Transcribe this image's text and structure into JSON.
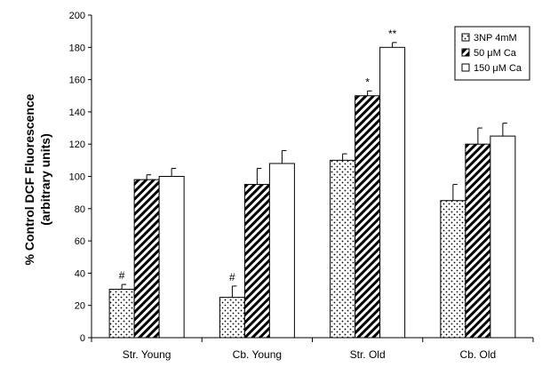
{
  "chart_data": {
    "type": "bar",
    "title": "",
    "xlabel": "",
    "ylabel": "% Control DCF Fluorescence",
    "ylabel2": "(arbitrary units)",
    "ylim": [
      0,
      200
    ],
    "yticks": [
      0,
      20,
      40,
      60,
      80,
      100,
      120,
      140,
      160,
      180,
      200
    ],
    "grid": false,
    "legend_position": "top-right",
    "categories": [
      "Str. Young",
      "Cb. Young",
      "Str. Old",
      "Cb. Old"
    ],
    "series": [
      {
        "name": "3NP 4mM",
        "pattern": "dots",
        "values": [
          30,
          25,
          110,
          85
        ],
        "errors": [
          3,
          7,
          4,
          10
        ],
        "annotations": [
          "#",
          "#",
          "",
          ""
        ]
      },
      {
        "name": "50 μM Ca",
        "pattern": "diagonal-hatch",
        "values": [
          98,
          95,
          150,
          120
        ],
        "errors": [
          3,
          10,
          3,
          10
        ],
        "annotations": [
          "",
          "",
          "*",
          ""
        ]
      },
      {
        "name": "150 μM Ca",
        "pattern": "white",
        "values": [
          100,
          108,
          180,
          125
        ],
        "errors": [
          5,
          8,
          3,
          8
        ],
        "annotations": [
          "",
          "",
          "**",
          ""
        ]
      }
    ]
  }
}
